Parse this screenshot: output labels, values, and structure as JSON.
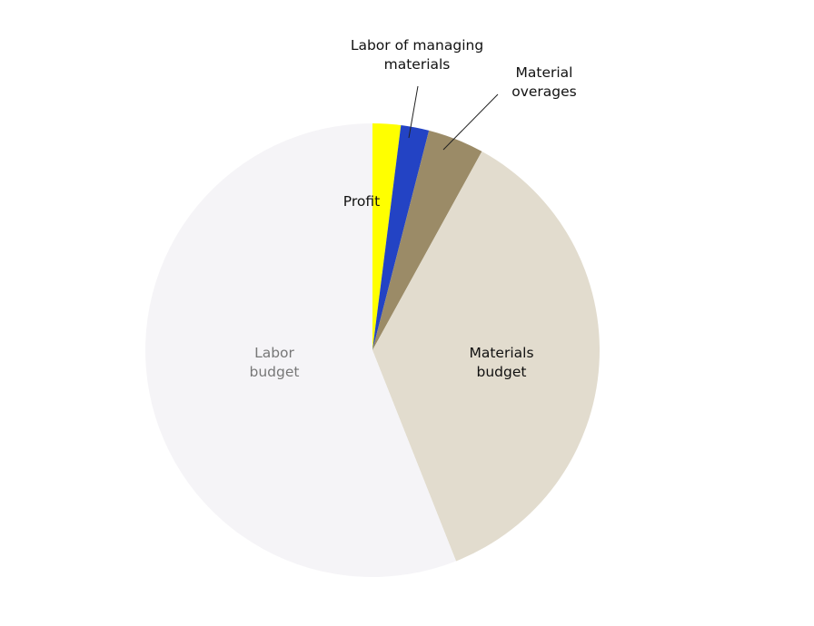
{
  "chart_data": {
    "type": "pie",
    "title": "",
    "start": "top",
    "direction": "clockwise",
    "legend": "none",
    "slices": [
      {
        "label": "Profit",
        "value": 2,
        "color": "#FFFF00",
        "label_color": "#111111",
        "label_placement": "inside-left",
        "leader_line": false
      },
      {
        "label": "Labor of managing materials",
        "value": 2,
        "color": "#2343C4",
        "label_color": "#111111",
        "label_placement": "outside",
        "leader_line": true
      },
      {
        "label": "Material overages",
        "value": 4,
        "color": "#9B8B67",
        "label_color": "#111111",
        "label_placement": "outside",
        "leader_line": true
      },
      {
        "label": "Materials budget",
        "value": 36,
        "color": "#E2DCCE",
        "label_color": "#111111",
        "label_placement": "inside",
        "leader_line": false
      },
      {
        "label": "Labor budget",
        "value": 56,
        "color": "#F5F4F7",
        "label_color": "#777777",
        "label_placement": "inside",
        "leader_line": false
      }
    ]
  }
}
